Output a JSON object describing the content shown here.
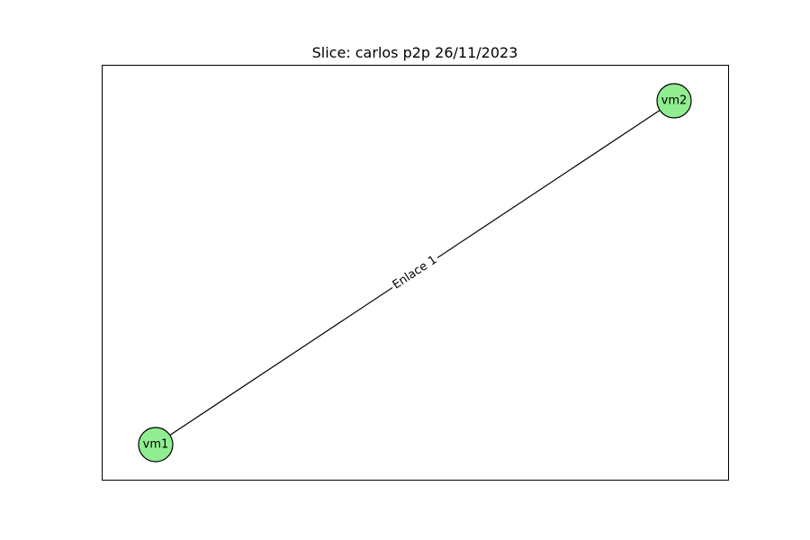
{
  "title": "Slice: carlos p2p 26/11/2023",
  "colors": {
    "node_fill": "#90ee90",
    "node_stroke": "#000000",
    "edge_stroke": "#000000",
    "frame_stroke": "#000000"
  },
  "nodes": [
    {
      "id": "vm1",
      "label": "vm1"
    },
    {
      "id": "vm2",
      "label": "vm2"
    }
  ],
  "edges": [
    {
      "source": "vm1",
      "target": "vm2",
      "label": "Enlace 1"
    }
  ]
}
